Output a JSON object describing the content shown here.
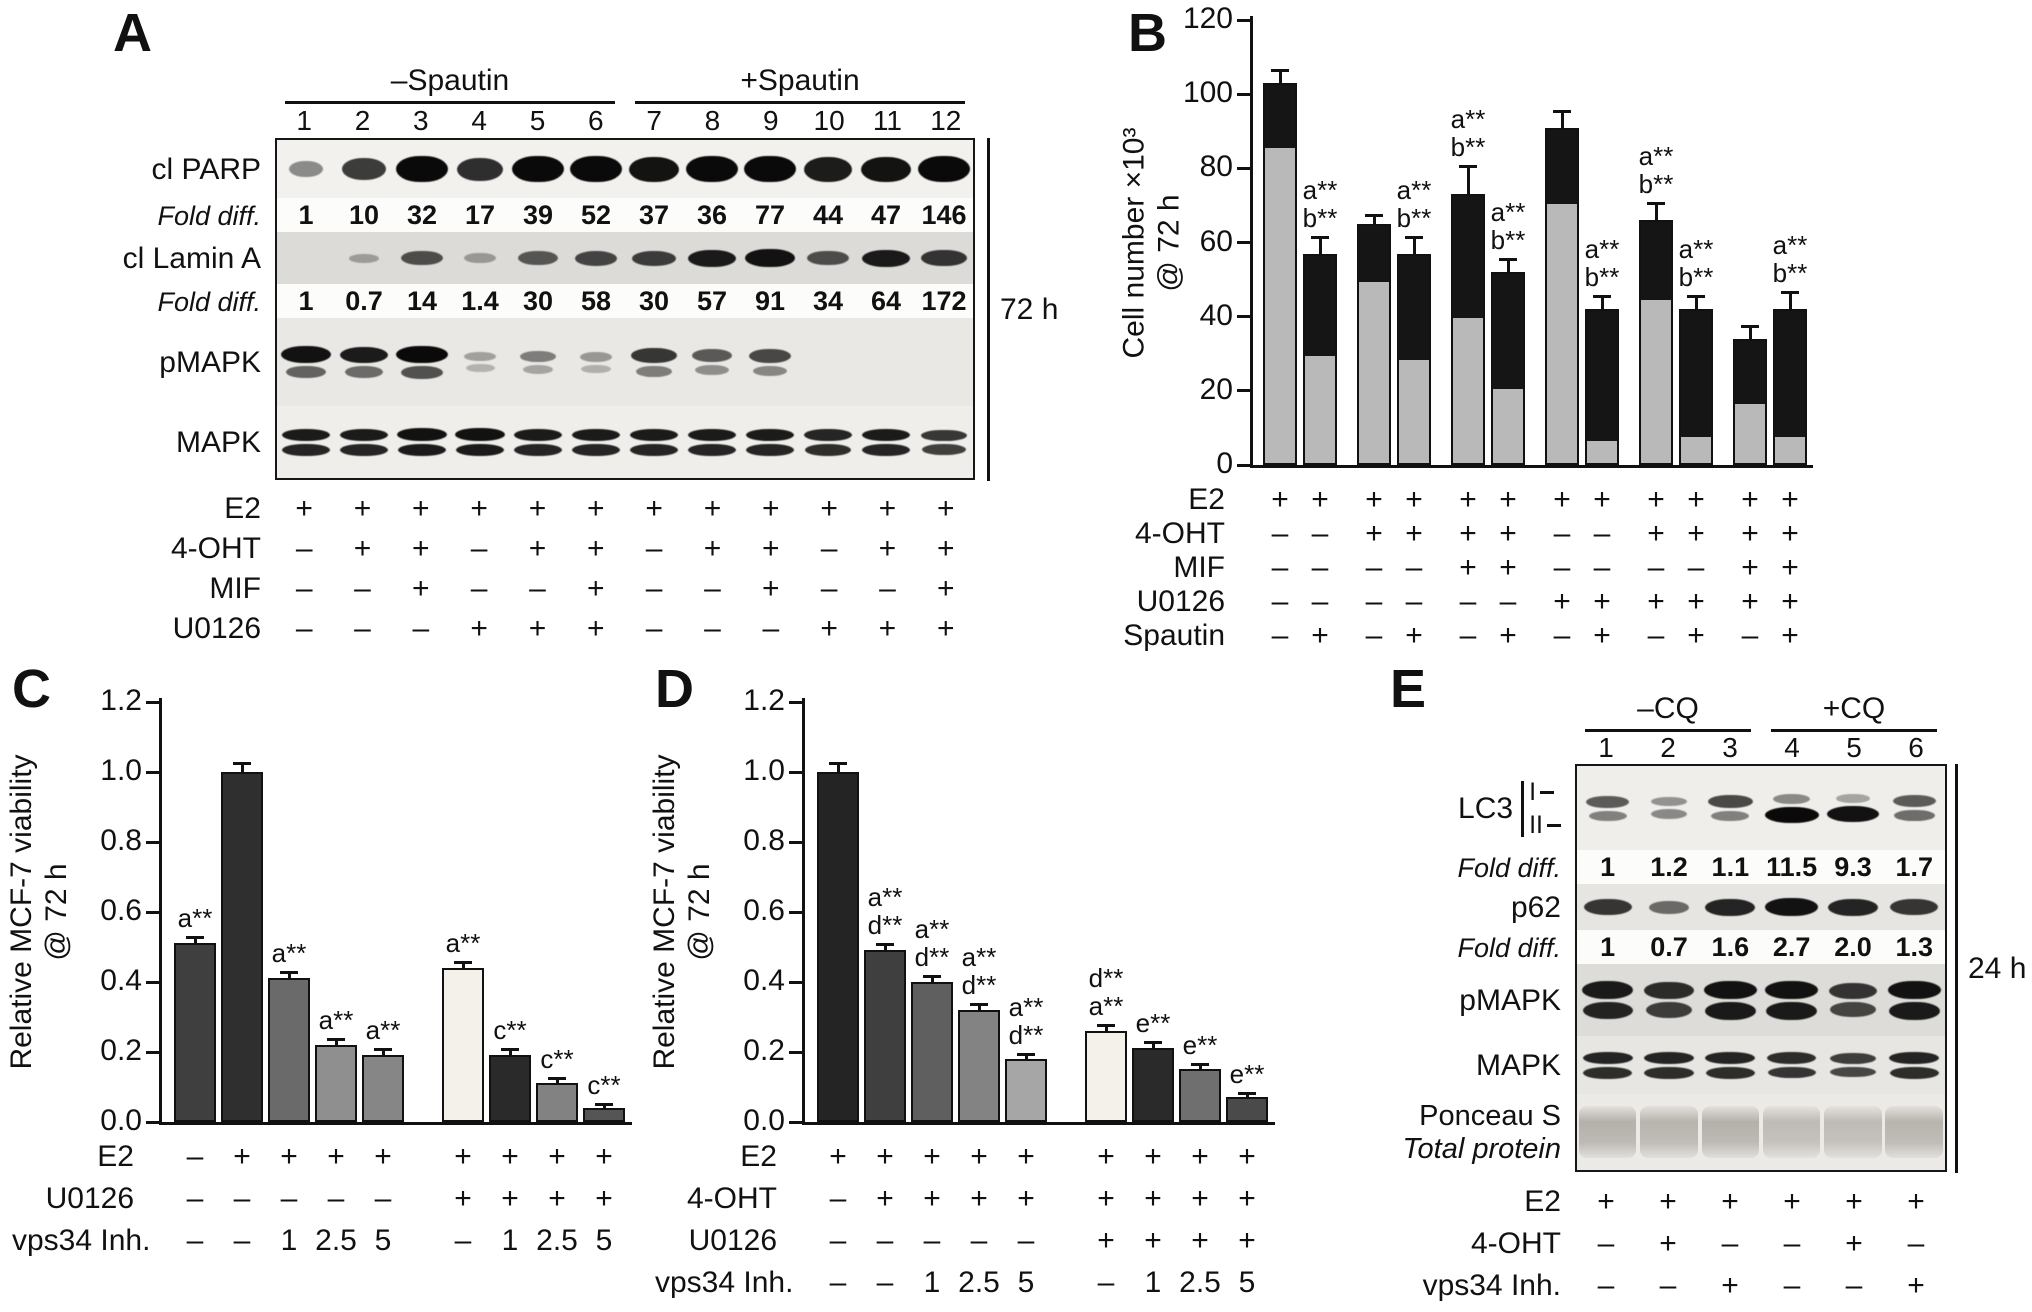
{
  "panel_a": {
    "label": "A",
    "group_headers": [
      "–Spautin",
      "+Spautin"
    ],
    "lanes": [
      "1",
      "2",
      "3",
      "4",
      "5",
      "6",
      "7",
      "8",
      "9",
      "10",
      "11",
      "12"
    ],
    "duration_label": "72 h",
    "rows": [
      {
        "kind": "blot",
        "label": "cl PARP",
        "bands": [
          [
            0.3,
            0.72,
            1,
            0.8,
            1,
            1,
            0.95,
            1,
            1,
            0.9,
            0.95,
            1
          ]
        ]
      },
      {
        "kind": "fold",
        "label": "Fold diff.",
        "values": [
          "1",
          "10",
          "32",
          "17",
          "39",
          "52",
          "37",
          "36",
          "77",
          "44",
          "47",
          "146"
        ]
      },
      {
        "kind": "blot",
        "label": "cl Lamin A",
        "bands": [
          [
            0,
            0.12,
            0.6,
            0.15,
            0.55,
            0.65,
            0.7,
            0.9,
            0.95,
            0.6,
            0.9,
            0.75
          ]
        ]
      },
      {
        "kind": "fold",
        "label": "Fold diff.",
        "values": [
          "1",
          "0.7",
          "14",
          "1.4",
          "30",
          "58",
          "30",
          "57",
          "91",
          "34",
          "64",
          "172"
        ]
      },
      {
        "kind": "blot",
        "label": "pMAPK",
        "bands": [
          [
            0.95,
            0.9,
            1,
            0.15,
            0.35,
            0.2,
            0.75,
            0.55,
            0.65,
            0,
            0,
            0
          ],
          [
            0.5,
            0.45,
            0.6,
            0.05,
            0.12,
            0.06,
            0.35,
            0.25,
            0.3,
            0,
            0,
            0
          ]
        ]
      },
      {
        "kind": "blot",
        "label": "MAPK",
        "bands": [
          [
            0.9,
            0.9,
            0.95,
            0.95,
            0.9,
            0.9,
            0.9,
            0.9,
            0.9,
            0.85,
            0.9,
            0.75
          ],
          [
            0.85,
            0.85,
            0.9,
            0.9,
            0.85,
            0.85,
            0.85,
            0.85,
            0.85,
            0.8,
            0.85,
            0.7
          ]
        ]
      }
    ],
    "treatments": [
      {
        "label": "E2",
        "values": [
          "+",
          "+",
          "+",
          "+",
          "+",
          "+",
          "+",
          "+",
          "+",
          "+",
          "+",
          "+"
        ]
      },
      {
        "label": "4-OHT",
        "values": [
          "–",
          "+",
          "+",
          "–",
          "+",
          "+",
          "–",
          "+",
          "+",
          "–",
          "+",
          "+"
        ]
      },
      {
        "label": "MIF",
        "values": [
          "–",
          "–",
          "+",
          "–",
          "–",
          "+",
          "–",
          "–",
          "+",
          "–",
          "–",
          "+"
        ]
      },
      {
        "label": "U0126",
        "values": [
          "–",
          "–",
          "–",
          "+",
          "+",
          "+",
          "–",
          "–",
          "–",
          "+",
          "+",
          "+"
        ]
      }
    ]
  },
  "panel_b": {
    "label": "B",
    "treatments": [
      {
        "label": "E2",
        "values": [
          "+",
          "+",
          "+",
          "+",
          "+",
          "+",
          "+",
          "+",
          "+",
          "+",
          "+",
          "+"
        ]
      },
      {
        "label": "4-OHT",
        "values": [
          "–",
          "–",
          "+",
          "+",
          "+",
          "+",
          "–",
          "–",
          "+",
          "+",
          "+",
          "+"
        ]
      },
      {
        "label": "MIF",
        "values": [
          "–",
          "–",
          "–",
          "–",
          "+",
          "+",
          "–",
          "–",
          "–",
          "–",
          "+",
          "+"
        ]
      },
      {
        "label": "U0126",
        "values": [
          "–",
          "–",
          "–",
          "–",
          "–",
          "–",
          "+",
          "+",
          "+",
          "+",
          "+",
          "+"
        ]
      },
      {
        "label": "Spautin",
        "values": [
          "–",
          "+",
          "–",
          "+",
          "–",
          "+",
          "–",
          "+",
          "–",
          "+",
          "–",
          "+"
        ]
      }
    ]
  },
  "panel_c": {
    "label": "C",
    "treatments": [
      {
        "label": "E2",
        "values": [
          "–",
          "+",
          "+",
          "+",
          "+",
          "+",
          "+",
          "+",
          "+"
        ]
      },
      {
        "label": "U0126",
        "values": [
          "–",
          "–",
          "–",
          "–",
          "–",
          "+",
          "+",
          "+",
          "+"
        ]
      },
      {
        "label": "vps34 Inh.",
        "values": [
          "–",
          "–",
          "1",
          "2.5",
          "5",
          "–",
          "1",
          "2.5",
          "5"
        ]
      }
    ]
  },
  "panel_d": {
    "label": "D",
    "treatments": [
      {
        "label": "E2",
        "values": [
          "+",
          "+",
          "+",
          "+",
          "+",
          "+",
          "+",
          "+",
          "+"
        ]
      },
      {
        "label": "4-OHT",
        "values": [
          "–",
          "+",
          "+",
          "+",
          "+",
          "+",
          "+",
          "+",
          "+"
        ]
      },
      {
        "label": "U0126",
        "values": [
          "–",
          "–",
          "–",
          "–",
          "–",
          "+",
          "+",
          "+",
          "+"
        ]
      },
      {
        "label": "vps34 Inh.",
        "values": [
          "–",
          "–",
          "1",
          "2.5",
          "5",
          "–",
          "1",
          "2.5",
          "5"
        ]
      }
    ]
  },
  "panel_e": {
    "label": "E",
    "group_headers": [
      "–CQ",
      "+CQ"
    ],
    "lanes": [
      "1",
      "2",
      "3",
      "4",
      "5",
      "6"
    ],
    "duration_label": "24 h",
    "rows": [
      {
        "kind": "blot",
        "label": "LC3",
        "markers": [
          "I",
          "II"
        ],
        "bands": [
          [
            0.55,
            0.25,
            0.65,
            0.3,
            0.15,
            0.55
          ],
          [
            0.35,
            0.3,
            0.35,
            1,
            0.95,
            0.45
          ]
        ]
      },
      {
        "kind": "fold",
        "label": "Fold diff.",
        "values": [
          "1",
          "1.2",
          "1.1",
          "11.5",
          "9.3",
          "1.7"
        ]
      },
      {
        "kind": "blot",
        "label": "p62",
        "bands": [
          [
            0.75,
            0.45,
            0.85,
            0.95,
            0.85,
            0.75
          ]
        ]
      },
      {
        "kind": "fold",
        "label": "Fold diff.",
        "values": [
          "1",
          "0.7",
          "1.6",
          "2.7",
          "2.0",
          "1.3"
        ]
      },
      {
        "kind": "blot",
        "label": "pMAPK",
        "bands": [
          [
            0.9,
            0.8,
            0.95,
            0.95,
            0.75,
            0.95
          ],
          [
            0.85,
            0.7,
            0.9,
            0.9,
            0.65,
            0.9
          ]
        ]
      },
      {
        "kind": "blot",
        "label": "MAPK",
        "bands": [
          [
            0.85,
            0.85,
            0.85,
            0.8,
            0.7,
            0.85
          ],
          [
            0.8,
            0.8,
            0.8,
            0.75,
            0.65,
            0.8
          ]
        ]
      },
      {
        "kind": "blot",
        "label": "Ponceau S",
        "label2": "Total protein",
        "bands": [
          [
            0.85,
            0.8,
            0.85,
            0.7,
            0.7,
            0.8
          ]
        ]
      }
    ],
    "treatments": [
      {
        "label": "E2",
        "values": [
          "+",
          "+",
          "+",
          "+",
          "+",
          "+"
        ]
      },
      {
        "label": "4-OHT",
        "values": [
          "–",
          "+",
          "–",
          "–",
          "+",
          "–"
        ]
      },
      {
        "label": "vps34 Inh.",
        "values": [
          "–",
          "–",
          "+",
          "–",
          "–",
          "+"
        ]
      }
    ]
  },
  "chart_data": [
    {
      "id": "B",
      "type": "bar",
      "stacked": true,
      "ylabel_lines": [
        "Cell number ×10³",
        "@ 72 h"
      ],
      "ylim": [
        0,
        120
      ],
      "yticks": [
        0,
        20,
        40,
        60,
        80,
        100,
        120
      ],
      "ytick_decimals": 0,
      "series": [
        {
          "name": "lower segment",
          "color": "#b9b9b9",
          "values": [
            86,
            30,
            50,
            29,
            40,
            21,
            71,
            7,
            45,
            8,
            17,
            8
          ]
        },
        {
          "name": "upper segment",
          "color": "#151515",
          "values": [
            17,
            27,
            15,
            28,
            33,
            31,
            20,
            35,
            21,
            34,
            17,
            34
          ]
        }
      ],
      "totals": [
        103,
        57,
        65,
        57,
        73,
        52,
        91,
        42,
        66,
        42,
        34,
        42
      ],
      "errors": [
        3,
        4,
        2,
        4,
        7,
        3,
        4,
        3,
        4,
        3,
        3,
        4
      ],
      "annotations": [
        [],
        [
          "a**",
          "b**"
        ],
        [],
        [
          "a**",
          "b**"
        ],
        [
          "a**",
          "b**"
        ],
        [
          "a**",
          "b**"
        ],
        [],
        [
          "a**",
          "b**"
        ],
        [
          "a**",
          "b**"
        ],
        [
          "a**",
          "b**"
        ],
        [],
        [
          "a**",
          "b**"
        ]
      ]
    },
    {
      "id": "C",
      "type": "bar",
      "ylabel_lines": [
        "Relative MCF-7 viability",
        "@ 72 h"
      ],
      "ylim": [
        0,
        1.2
      ],
      "yticks": [
        0,
        0.2,
        0.4,
        0.6,
        0.8,
        1.0,
        1.2
      ],
      "ytick_decimals": 1,
      "values": [
        0.51,
        1.0,
        0.41,
        0.22,
        0.19,
        0.44,
        0.19,
        0.11,
        0.04
      ],
      "errors": [
        0.012,
        0.02,
        0.012,
        0.01,
        0.01,
        0.012,
        0.01,
        0.008,
        0.006
      ],
      "colors": [
        "#3f3f3f",
        "#2f2f2f",
        "#6a6a6a",
        "#8f8f8f",
        "#868686",
        "#f3f1ea",
        "#2a2a2a",
        "#828282",
        "#555555"
      ],
      "annotations": [
        [
          "a**"
        ],
        [],
        [
          "a**"
        ],
        [
          "a**"
        ],
        [
          "a**"
        ],
        [
          "a**"
        ],
        [
          "c**"
        ],
        [
          "c**"
        ],
        [
          "c**"
        ]
      ]
    },
    {
      "id": "D",
      "type": "bar",
      "ylabel_lines": [
        "Relative MCF-7 viability",
        "@ 72 h"
      ],
      "ylim": [
        0,
        1.2
      ],
      "yticks": [
        0,
        0.2,
        0.4,
        0.6,
        0.8,
        1.0,
        1.2
      ],
      "ytick_decimals": 1,
      "values": [
        1.0,
        0.49,
        0.4,
        0.32,
        0.18,
        0.26,
        0.21,
        0.15,
        0.07
      ],
      "errors": [
        0.02,
        0.012,
        0.01,
        0.01,
        0.008,
        0.01,
        0.01,
        0.008,
        0.006
      ],
      "colors": [
        "#242424",
        "#3f3f3f",
        "#5f5f5f",
        "#838383",
        "#a6a6a6",
        "#f3f1ea",
        "#2a2a2a",
        "#6f6f6f",
        "#4a4a4a"
      ],
      "annotations": [
        [],
        [
          "a**",
          "d**"
        ],
        [
          "a**",
          "d**"
        ],
        [
          "a**",
          "d**"
        ],
        [
          "a**",
          "d**"
        ],
        [
          "d**",
          "a**"
        ],
        [
          "e**"
        ],
        [
          "e**"
        ],
        [
          "e**"
        ]
      ]
    }
  ]
}
